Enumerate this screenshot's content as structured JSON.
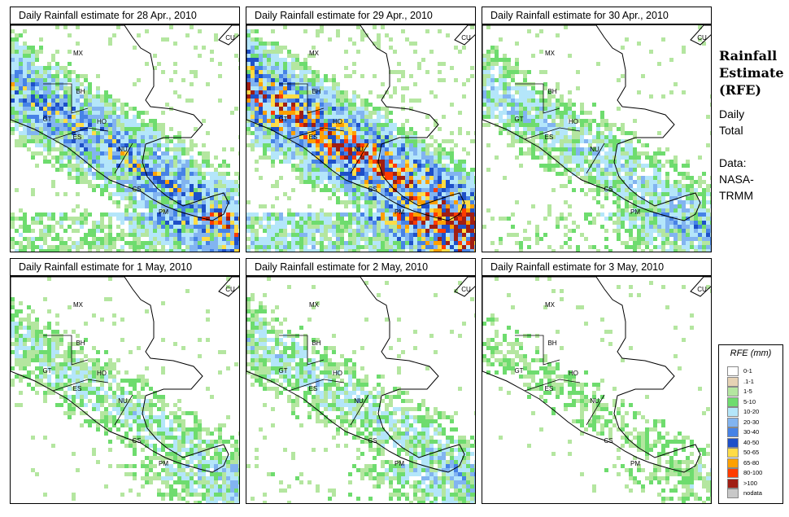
{
  "panels": [
    {
      "title": "Daily Rainfall estimate for  28 Apr., 2010",
      "intensity": 0.9,
      "seed": 11
    },
    {
      "title": "Daily Rainfall estimate for  29 Apr., 2010",
      "intensity": 1.3,
      "seed": 23
    },
    {
      "title": "Daily Rainfall estimate for  30 Apr., 2010",
      "intensity": 0.55,
      "seed": 37
    },
    {
      "title": "Daily Rainfall estimate for  1 May, 2010",
      "intensity": 0.45,
      "seed": 41
    },
    {
      "title": "Daily Rainfall estimate for  2 May, 2010",
      "intensity": 0.5,
      "seed": 53
    },
    {
      "title": "Daily Rainfall estimate for  3 May, 2010",
      "intensity": 0.3,
      "seed": 67
    }
  ],
  "country_labels": [
    "MX",
    "BH",
    "GT",
    "HO",
    "ES",
    "NU",
    "CS",
    "PM",
    "CU"
  ],
  "sidebar": {
    "title_line1": "Rainfall",
    "title_line2": "Estimate",
    "title_line3": "(RFE)",
    "daily1": "Daily",
    "daily2": "Total",
    "data1": "Data:",
    "data2": "NASA-",
    "data3": "TRMM"
  },
  "legend": {
    "title": "RFE (mm)",
    "items": [
      {
        "label": "0-1",
        "color": "#ffffff"
      },
      {
        "label": ".1-1",
        "color": "#e6d2b4"
      },
      {
        "label": "1-5",
        "color": "#b4e6a0"
      },
      {
        "label": "5-10",
        "color": "#6edc6e"
      },
      {
        "label": "10-20",
        "color": "#b4e6fa"
      },
      {
        "label": "20-30",
        "color": "#82b4f0"
      },
      {
        "label": "30-40",
        "color": "#4682e6"
      },
      {
        "label": "40-50",
        "color": "#1e50c8"
      },
      {
        "label": "50-65",
        "color": "#ffdc46"
      },
      {
        "label": "65-80",
        "color": "#ffa000"
      },
      {
        "label": "80-100",
        "color": "#ff3c00"
      },
      {
        "label": ">100",
        "color": "#a01e14"
      },
      {
        "label": "nodata",
        "color": "#c8c8c8"
      }
    ]
  }
}
